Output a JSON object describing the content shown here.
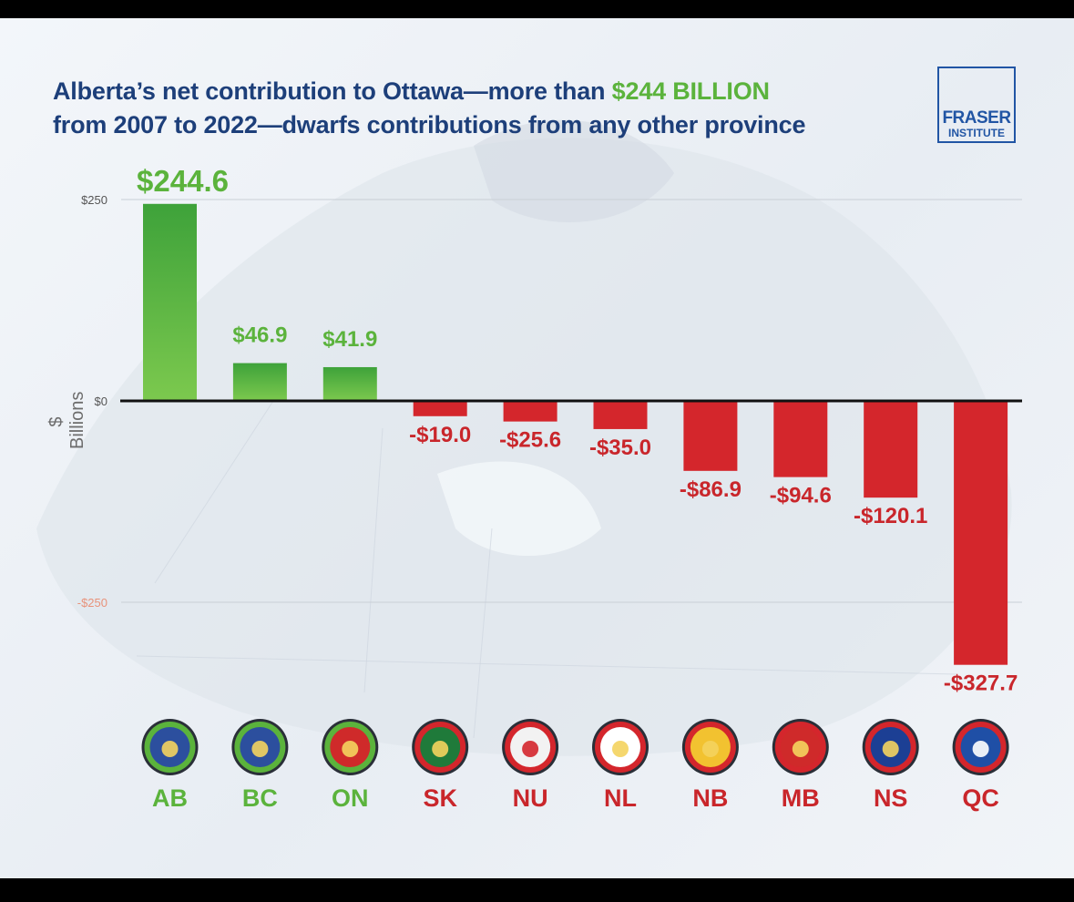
{
  "title": {
    "part1": "Alberta’s net contribution to Ottawa—more than ",
    "highlight": "$244 BILLION",
    "part2": "from 2007 to 2022—dwarfs contributions from any other province"
  },
  "logo": {
    "line1": "FRASER",
    "line2": "INSTITUTE"
  },
  "colors": {
    "positive": "#5bb33c",
    "negative": "#d4262c",
    "title": "#1d3f7a",
    "brand": "#2155a4"
  },
  "chart_data": {
    "type": "bar",
    "title": "Alberta’s net contribution to Ottawa—more than $244 BILLION from 2007 to 2022—dwarfs contributions from any other province",
    "xlabel": "",
    "ylabel": "$ Billions",
    "ylim": [
      -330,
      250
    ],
    "yticks": [
      {
        "value": 250,
        "label": "$250"
      },
      {
        "value": 0,
        "label": "$0"
      },
      {
        "value": -250,
        "label": "-$250"
      }
    ],
    "categories": [
      "AB",
      "BC",
      "ON",
      "SK",
      "NU",
      "NL",
      "NB",
      "MB",
      "NS",
      "QC"
    ],
    "values": [
      244.6,
      46.9,
      41.9,
      -19.0,
      -25.6,
      -35.0,
      -86.9,
      -94.6,
      -120.1,
      -327.7
    ],
    "data_labels": [
      "$244.6",
      "$46.9",
      "$41.9",
      "-$19.0",
      "-$25.6",
      "-$35.0",
      "-$86.9",
      "-$94.6",
      "-$120.1",
      "-$327.7"
    ],
    "flag_icons": [
      "alberta-flag-icon",
      "british-columbia-flag-icon",
      "ontario-flag-icon",
      "saskatchewan-flag-icon",
      "nunavut-flag-icon",
      "newfoundland-flag-icon",
      "new-brunswick-flag-icon",
      "manitoba-flag-icon",
      "nova-scotia-flag-icon",
      "quebec-flag-icon"
    ],
    "grid": true
  }
}
